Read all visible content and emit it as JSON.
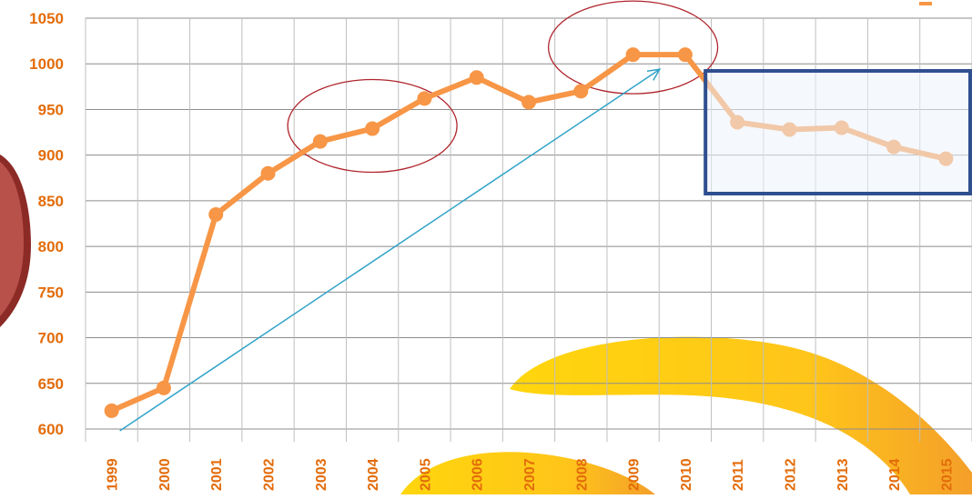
{
  "colors": {
    "accent": "#F79646",
    "tick_text": "#E36C0A",
    "grid": "#8C8C8C",
    "trend_arrow": "#31A3C8",
    "ellipse": "#B0242C",
    "highlight_box": "#2F4F8F",
    "highlight_fill": "#EDF3FA",
    "decor_yellow": "#FFD400",
    "decor_orange": "#F39A1E",
    "decor_red": "#8C2A26"
  },
  "chart_data": {
    "type": "line",
    "categories": [
      "1999",
      "2000",
      "2001",
      "2002",
      "2003",
      "2004",
      "2005",
      "2006",
      "2007",
      "2008",
      "2009",
      "2010",
      "2011",
      "2012",
      "2013",
      "2014",
      "2015"
    ],
    "series": [
      {
        "values": [
          620,
          645,
          835,
          880,
          915,
          929,
          962,
          985,
          958,
          970,
          1010,
          1010,
          936,
          928,
          930,
          909,
          896
        ]
      }
    ],
    "ylim": [
      600,
      1050
    ],
    "yticks": [
      600,
      650,
      700,
      750,
      800,
      850,
      900,
      950,
      1000,
      1050
    ],
    "grid": true,
    "annotations": {
      "trend_arrow": {
        "from": [
          "1999",
          600
        ],
        "to": [
          "2010",
          994
        ]
      },
      "ellipses": [
        {
          "center": [
            "2004",
            932
          ]
        },
        {
          "center": [
            "2009",
            1018
          ]
        }
      ],
      "highlight_box": {
        "from": "2011",
        "to": "2015"
      }
    }
  }
}
